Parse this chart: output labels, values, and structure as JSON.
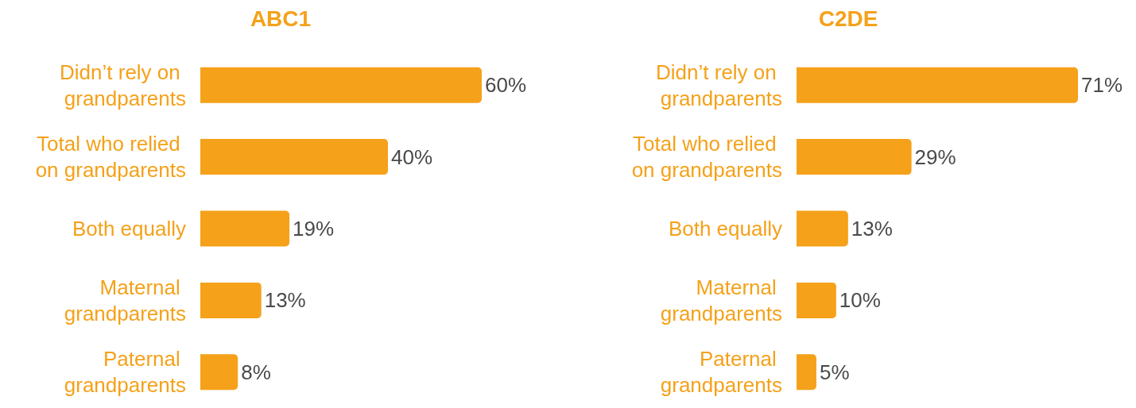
{
  "chart_data": [
    {
      "type": "bar",
      "title": "ABC1",
      "orientation": "horizontal",
      "categories": [
        "Didn’t rely on grandparents",
        "Total who relied on grandparents",
        "Both equally",
        "Maternal grandparents",
        "Paternal grandparents"
      ],
      "values": [
        60,
        40,
        19,
        13,
        8
      ],
      "value_labels": [
        "60%",
        "40%",
        "19%",
        "13%",
        "8%"
      ],
      "color": "#f5a11a"
    },
    {
      "type": "bar",
      "title": "C2DE",
      "orientation": "horizontal",
      "categories": [
        "Didn’t rely on grandparents",
        "Total who relied on grandparents",
        "Both equally",
        "Maternal grandparents",
        "Paternal grandparents"
      ],
      "values": [
        71,
        29,
        13,
        10,
        5
      ],
      "value_labels": [
        "71%",
        "29%",
        "13%",
        "10%",
        "5%"
      ],
      "color": "#f5a11a"
    }
  ]
}
